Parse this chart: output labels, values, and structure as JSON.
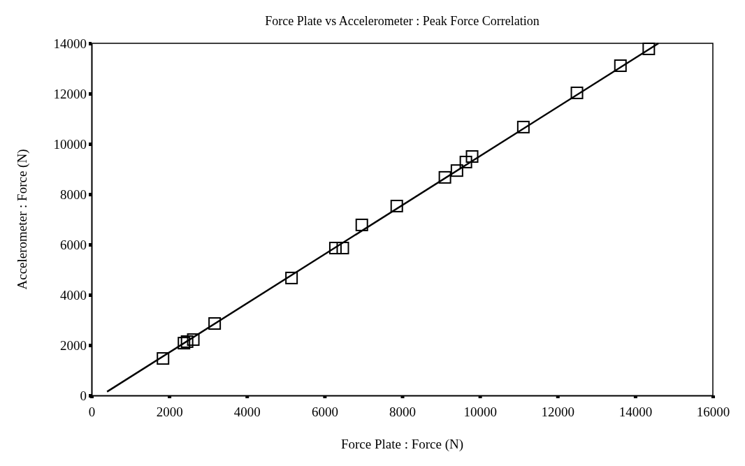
{
  "chart_data": {
    "type": "scatter",
    "title": "Force Plate vs Accelerometer : Peak Force Correlation",
    "xlabel": "Force Plate : Force (N)",
    "ylabel": "Accelerometer : Force (N)",
    "xlim": [
      0,
      16000
    ],
    "xticks": [
      0,
      2000,
      4000,
      6000,
      8000,
      10000,
      12000,
      14000,
      16000
    ],
    "ylim": [
      0,
      14000
    ],
    "yticks": [
      0,
      2000,
      4000,
      6000,
      8000,
      10000,
      12000,
      14000
    ],
    "grid": false,
    "series": [
      {
        "color": "#000000",
        "marker": "square",
        "x": [
          1840,
          2380,
          2460,
          2620,
          3170,
          5150,
          6280,
          6470,
          6960,
          7860,
          9100,
          9410,
          9640,
          9800,
          11120,
          12500,
          13620,
          14350
        ],
        "values": [
          1470,
          2080,
          2140,
          2220,
          2860,
          4670,
          5860,
          5860,
          6780,
          7530,
          8670,
          8940,
          9280,
          9500,
          10670,
          12030,
          13110,
          13780
        ]
      },
      {
        "type": "line",
        "color": "#000000",
        "marker": "none",
        "line_style": "solid",
        "x": [
          400,
          14600
        ],
        "values": [
          150,
          14000
        ]
      }
    ]
  }
}
